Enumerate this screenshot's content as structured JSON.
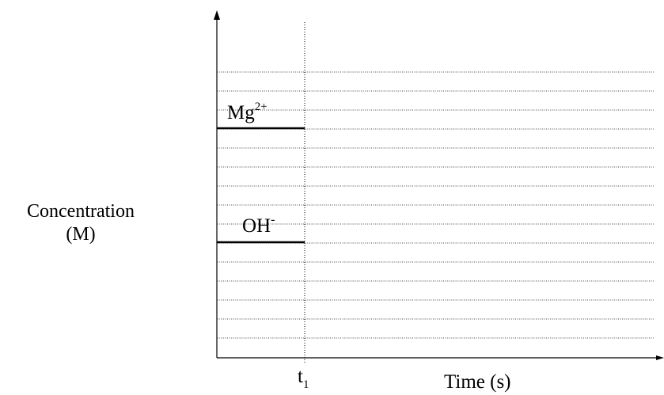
{
  "y_axis_label": {
    "line1": "Concentration",
    "line2": "(M)"
  },
  "x_axis_label": "Time (s)",
  "time_marker": {
    "base": "t",
    "subscript": "1"
  },
  "species": [
    {
      "base": "Mg",
      "superscript": "2+"
    },
    {
      "base": "OH",
      "superscript": "-"
    }
  ],
  "grid": {
    "gridline_count": 15,
    "style": "dotted"
  },
  "colors": {
    "axis": "#000000",
    "grid": "#000000",
    "text": "#000000",
    "background": "#ffffff"
  }
}
